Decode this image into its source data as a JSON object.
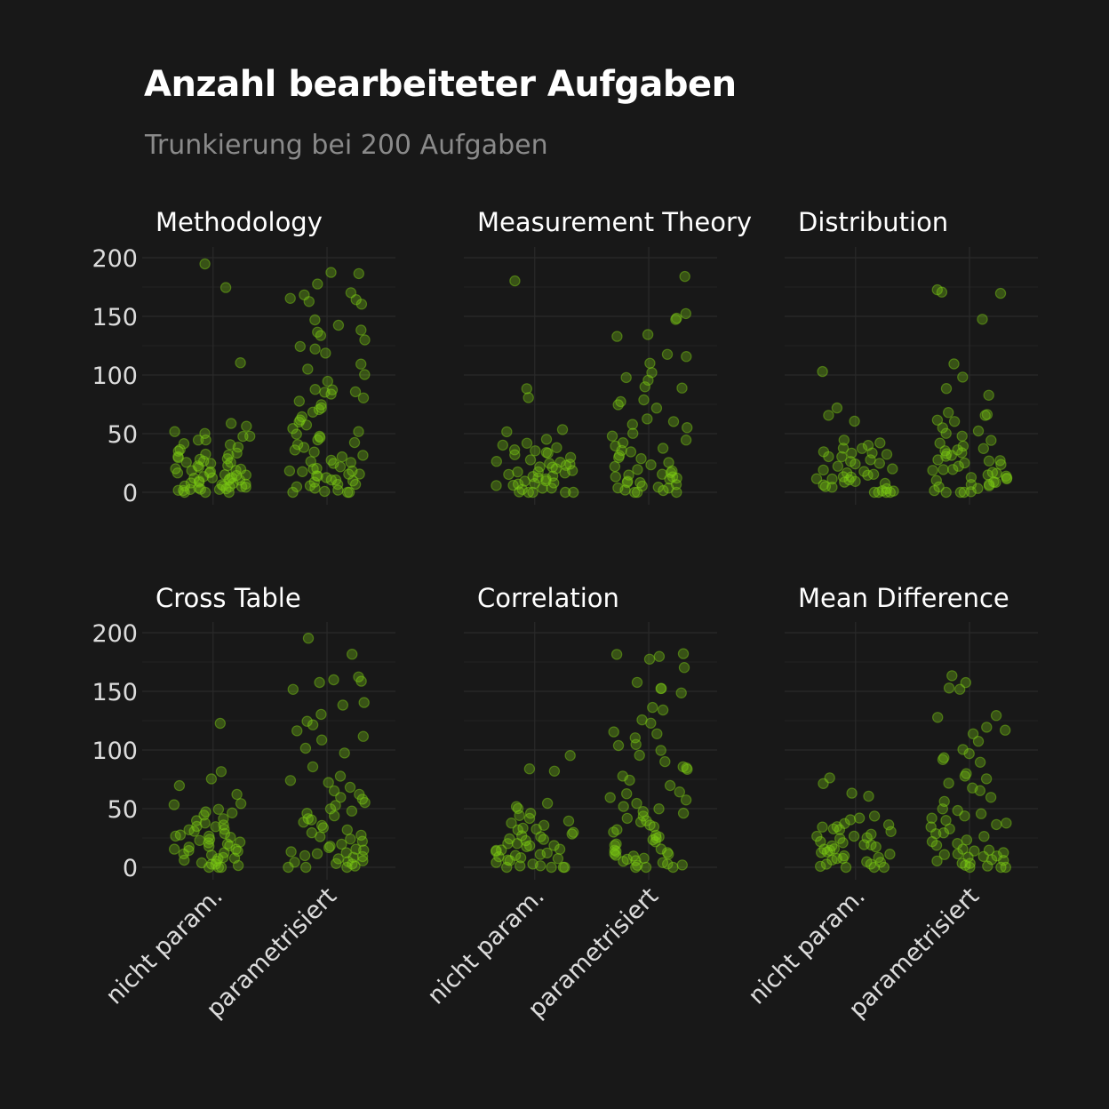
{
  "title": "Anzahl bearbeiteter Aufgaben",
  "subtitle": "Trunkierung bei 200 Aufgaben",
  "colors": {
    "background": "#181818",
    "point": "#7ccd13",
    "grid": "#2a2a2a",
    "text": "#ffffff",
    "muted": "#8a8a8a"
  },
  "chart_data": {
    "type": "scatter",
    "grid": true,
    "jitter": true,
    "categories": [
      "nicht param.",
      "parametrisiert"
    ],
    "ylim": [
      0,
      200
    ],
    "yticks": [
      "0",
      "50",
      "100",
      "150",
      "200"
    ],
    "facets": [
      {
        "name": "Methodology",
        "series": [
          {
            "name": "nicht param.",
            "values": [
              175,
              195,
              110,
              58,
              57,
              52,
              50,
              48,
              47,
              45,
              44,
              42,
              40,
              38,
              36,
              35,
              34,
              33,
              32,
              31,
              30,
              29,
              28,
              27,
              26,
              25,
              24,
              23,
              22,
              21,
              20,
              20,
              19,
              18,
              18,
              17,
              16,
              15,
              15,
              14,
              14,
              13,
              12,
              12,
              11,
              10,
              10,
              9,
              9,
              8,
              8,
              7,
              7,
              6,
              6,
              5,
              5,
              4,
              4,
              3,
              3,
              2,
              2,
              1,
              1,
              0,
              0,
              0
            ]
          },
          {
            "name": "parametrisiert",
            "values": [
              188,
              186,
              178,
              170,
              168,
              166,
              165,
              162,
              160,
              147,
              143,
              138,
              136,
              134,
              130,
              125,
              122,
              118,
              110,
              105,
              100,
              95,
              88,
              87,
              86,
              85,
              84,
              80,
              77,
              75,
              72,
              70,
              68,
              65,
              62,
              60,
              58,
              55,
              52,
              50,
              48,
              46,
              44,
              42,
              40,
              38,
              36,
              34,
              32,
              30,
              28,
              26,
              25,
              24,
              22,
              21,
              20,
              19,
              18,
              17,
              16,
              15,
              14,
              13,
              12,
              11,
              10,
              9,
              8,
              7,
              6,
              5,
              4,
              3,
              2,
              1,
              0,
              0,
              0
            ]
          }
        ]
      },
      {
        "name": "Measurement Theory",
        "series": [
          {
            "name": "nicht param.",
            "values": [
              180,
              88,
              80,
              54,
              52,
              45,
              42,
              40,
              38,
              36,
              35,
              34,
              33,
              32,
              30,
              28,
              27,
              26,
              25,
              24,
              23,
              22,
              21,
              20,
              19,
              18,
              17,
              16,
              15,
              14,
              13,
              12,
              11,
              10,
              9,
              8,
              8,
              7,
              6,
              5,
              4,
              3,
              2,
              1,
              0,
              0,
              0,
              0
            ]
          },
          {
            "name": "parametrisiert",
            "values": [
              184,
              153,
              148,
              147,
              134,
              133,
              118,
              116,
              110,
              102,
              98,
              95,
              90,
              89,
              79,
              77,
              75,
              72,
              62,
              60,
              58,
              55,
              50,
              48,
              45,
              42,
              40,
              38,
              36,
              34,
              32,
              30,
              28,
              26,
              24,
              22,
              20,
              18,
              17,
              16,
              15,
              14,
              13,
              12,
              11,
              10,
              9,
              8,
              7,
              6,
              5,
              4,
              3,
              2,
              1,
              0,
              0,
              0
            ]
          }
        ]
      },
      {
        "name": "Distribution",
        "series": [
          {
            "name": "nicht param.",
            "values": [
              103,
              72,
              65,
              60,
              45,
              42,
              40,
              38,
              37,
              35,
              34,
              33,
              32,
              31,
              30,
              28,
              27,
              25,
              24,
              22,
              20,
              19,
              18,
              17,
              16,
              15,
              14,
              13,
              12,
              11,
              10,
              9,
              8,
              7,
              6,
              5,
              4,
              3,
              2,
              1,
              0,
              0,
              0,
              0
            ]
          },
          {
            "name": "parametrisiert",
            "values": [
              172,
              170,
              169,
              148,
              110,
              98,
              88,
              83,
              68,
              66,
              65,
              62,
              60,
              55,
              52,
              50,
              48,
              45,
              42,
              40,
              38,
              36,
              35,
              34,
              33,
              32,
              30,
              28,
              27,
              26,
              25,
              24,
              22,
              20,
              19,
              18,
              17,
              16,
              15,
              14,
              13,
              12,
              11,
              10,
              9,
              8,
              7,
              6,
              5,
              4,
              3,
              2,
              1,
              0,
              0,
              0
            ]
          }
        ]
      },
      {
        "name": "Cross Table",
        "series": [
          {
            "name": "nicht param.",
            "values": [
              122,
              81,
              76,
              70,
              62,
              55,
              53,
              50,
              48,
              46,
              44,
              42,
              40,
              38,
              36,
              35,
              34,
              33,
              32,
              30,
              29,
              28,
              27,
              26,
              25,
              24,
              23,
              22,
              21,
              20,
              19,
              18,
              17,
              16,
              15,
              14,
              13,
              12,
              11,
              10,
              9,
              8,
              7,
              6,
              5,
              4,
              3,
              2,
              1,
              0,
              0,
              0
            ]
          },
          {
            "name": "parametrisiert",
            "values": [
              195,
              181,
              162,
              160,
              158,
              157,
              151,
              140,
              138,
              130,
              125,
              122,
              116,
              112,
              108,
              102,
              97,
              85,
              78,
              74,
              72,
              68,
              65,
              62,
              60,
              58,
              55,
              52,
              50,
              48,
              46,
              44,
              42,
              40,
              38,
              36,
              34,
              32,
              30,
              28,
              26,
              24,
              22,
              20,
              18,
              16,
              15,
              14,
              13,
              12,
              11,
              10,
              9,
              8,
              7,
              6,
              5,
              4,
              3,
              2,
              1,
              0,
              0,
              0
            ]
          }
        ]
      },
      {
        "name": "Correlation",
        "series": [
          {
            "name": "nicht param.",
            "values": [
              95,
              84,
              82,
              55,
              52,
              50,
              46,
              44,
              42,
              40,
              38,
              36,
              34,
              33,
              32,
              30,
              28,
              27,
              26,
              25,
              24,
              22,
              21,
              20,
              19,
              18,
              17,
              16,
              15,
              14,
              13,
              12,
              11,
              10,
              9,
              8,
              7,
              6,
              5,
              4,
              3,
              2,
              1,
              0,
              0,
              0,
              0
            ]
          },
          {
            "name": "parametrisiert",
            "values": [
              182,
              181,
              180,
              177,
              170,
              158,
              153,
              152,
              148,
              136,
              134,
              125,
              123,
              116,
              114,
              110,
              105,
              104,
              100,
              95,
              90,
              85,
              84,
              83,
              78,
              75,
              70,
              65,
              62,
              60,
              58,
              55,
              52,
              50,
              48,
              46,
              44,
              42,
              40,
              38,
              36,
              34,
              32,
              30,
              28,
              26,
              25,
              24,
              22,
              20,
              18,
              16,
              15,
              14,
              13,
              12,
              11,
              10,
              9,
              8,
              7,
              6,
              5,
              4,
              3,
              2,
              1,
              0,
              0,
              0
            ]
          }
        ]
      },
      {
        "name": "Mean Difference",
        "series": [
          {
            "name": "nicht param.",
            "values": [
              76,
              72,
              63,
              60,
              44,
              42,
              40,
              38,
              36,
              35,
              34,
              33,
              32,
              30,
              28,
              27,
              26,
              25,
              24,
              22,
              21,
              20,
              19,
              18,
              17,
              16,
              15,
              14,
              13,
              12,
              11,
              10,
              9,
              8,
              7,
              6,
              5,
              4,
              3,
              2,
              1,
              0,
              0,
              0
            ]
          },
          {
            "name": "parametrisiert",
            "values": [
              163,
              157,
              153,
              152,
              130,
              128,
              120,
              117,
              114,
              107,
              101,
              97,
              93,
              92,
              90,
              80,
              77,
              75,
              72,
              68,
              65,
              60,
              56,
              50,
              48,
              46,
              44,
              42,
              40,
              38,
              36,
              34,
              32,
              30,
              28,
              26,
              24,
              22,
              20,
              18,
              16,
              15,
              14,
              13,
              12,
              11,
              10,
              9,
              8,
              7,
              6,
              5,
              4,
              3,
              2,
              1,
              0,
              0,
              0
            ]
          }
        ]
      }
    ]
  }
}
